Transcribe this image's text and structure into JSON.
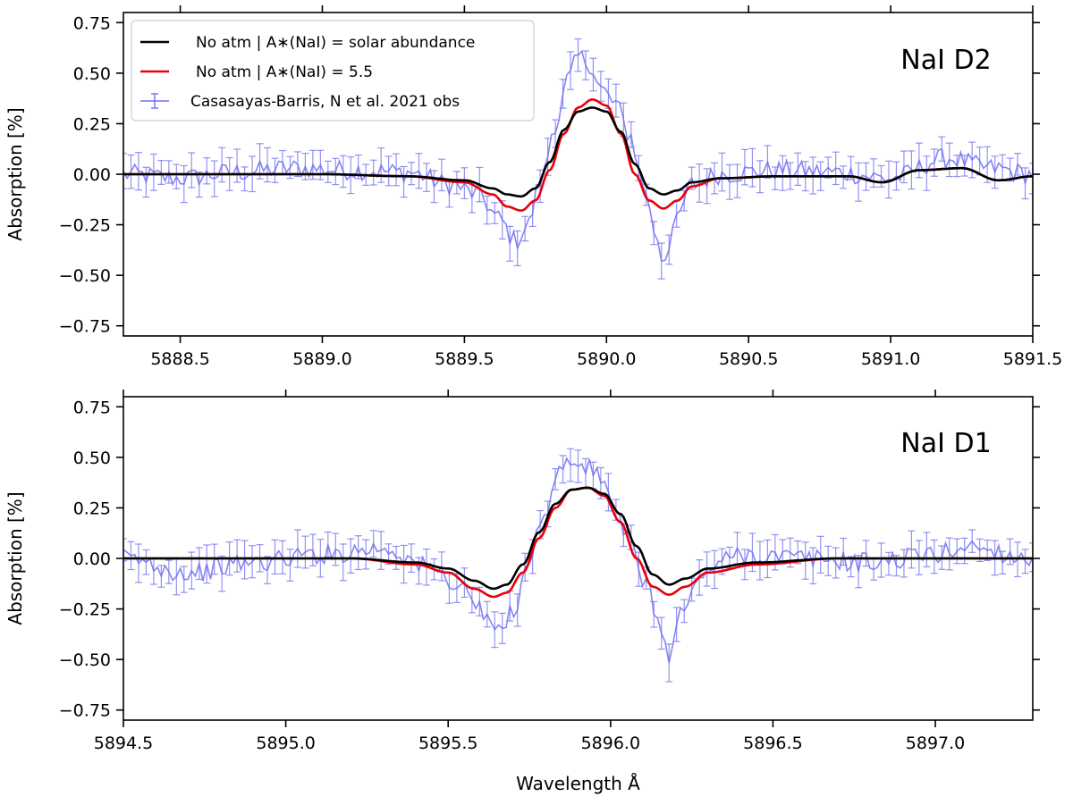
{
  "chart_data": [
    {
      "type": "line",
      "panel_title": "NaI D2",
      "ylabel": "Absorption [%]",
      "xlabel": "",
      "xlim": [
        5888.3,
        5891.5
      ],
      "ylim": [
        -0.8,
        0.8
      ],
      "xticks": [
        "5888.5",
        "5889.0",
        "5889.5",
        "5890.0",
        "5890.5",
        "5891.0",
        "5891.5"
      ],
      "yticks": [
        "0.75",
        "0.50",
        "0.25",
        "0.00",
        "−0.25",
        "−0.50",
        "−0.75"
      ],
      "legend": {
        "position": "top-left",
        "entries": [
          {
            "label": "No atm | A∗(NaI) = solar abundance",
            "color": "#000000"
          },
          {
            "label": "No atm | A∗(NaI) = 5.5",
            "color": "#e8000b"
          },
          {
            "label": "Casasayas-Barris, N et al. 2021 obs",
            "color": "#7070f0"
          }
        ]
      },
      "series": [
        {
          "name": "No atm | A∗(NaI) = solar abundance",
          "color": "#000000",
          "x": [
            5888.3,
            5889.0,
            5889.3,
            5889.5,
            5889.6,
            5889.65,
            5889.7,
            5889.75,
            5889.8,
            5889.85,
            5889.9,
            5889.95,
            5890.0,
            5890.05,
            5890.1,
            5890.15,
            5890.2,
            5890.25,
            5890.3,
            5890.4,
            5890.6,
            5890.85,
            5890.97,
            5891.1,
            5891.25,
            5891.38,
            5891.5
          ],
          "y": [
            0.0,
            0.0,
            -0.01,
            -0.03,
            -0.07,
            -0.1,
            -0.11,
            -0.07,
            0.06,
            0.22,
            0.31,
            0.33,
            0.31,
            0.21,
            0.05,
            -0.07,
            -0.1,
            -0.08,
            -0.04,
            -0.02,
            -0.01,
            -0.01,
            -0.04,
            0.02,
            0.03,
            -0.03,
            -0.01
          ]
        },
        {
          "name": "No atm | A∗(NaI) = 5.5",
          "color": "#e8000b",
          "x": [
            5888.3,
            5889.0,
            5889.3,
            5889.5,
            5889.6,
            5889.65,
            5889.7,
            5889.75,
            5889.8,
            5889.85,
            5889.9,
            5889.95,
            5890.0,
            5890.05,
            5890.1,
            5890.15,
            5890.2,
            5890.25,
            5890.3,
            5890.4,
            5890.6,
            5890.85,
            5890.97,
            5891.1,
            5891.25,
            5891.38,
            5891.5
          ],
          "y": [
            0.0,
            0.0,
            -0.01,
            -0.04,
            -0.1,
            -0.16,
            -0.18,
            -0.13,
            0.02,
            0.2,
            0.33,
            0.37,
            0.34,
            0.2,
            0.0,
            -0.13,
            -0.17,
            -0.13,
            -0.06,
            -0.02,
            -0.01,
            -0.01,
            -0.04,
            0.02,
            0.03,
            -0.03,
            -0.01
          ]
        },
        {
          "name": "Casasayas-Barris, N et al. 2021 obs",
          "color": "#7070f0",
          "x": [
            5888.3,
            5888.5,
            5888.7,
            5888.9,
            5889.1,
            5889.3,
            5889.45,
            5889.55,
            5889.62,
            5889.68,
            5889.72,
            5889.77,
            5889.82,
            5889.87,
            5889.9,
            5889.94,
            5889.98,
            5890.03,
            5890.08,
            5890.13,
            5890.17,
            5890.2,
            5890.24,
            5890.3,
            5890.4,
            5890.6,
            5890.8,
            5891.0,
            5891.2,
            5891.35,
            5891.5
          ],
          "y": [
            0.0,
            -0.02,
            0.01,
            0.03,
            0.02,
            0.01,
            -0.05,
            -0.1,
            -0.22,
            -0.33,
            -0.26,
            -0.03,
            0.25,
            0.48,
            0.58,
            0.55,
            0.42,
            0.35,
            0.2,
            -0.05,
            -0.28,
            -0.42,
            -0.25,
            -0.05,
            0.0,
            0.02,
            0.01,
            -0.02,
            0.08,
            0.03,
            0.0
          ]
        }
      ]
    },
    {
      "type": "line",
      "panel_title": "NaI D1",
      "ylabel": "Absorption [%]",
      "xlabel": "Wavelength Å",
      "xlim": [
        5894.5,
        5897.3
      ],
      "ylim": [
        -0.8,
        0.8
      ],
      "xticks": [
        "5894.5",
        "5895.0",
        "5895.5",
        "5896.0",
        "5896.5",
        "5897.0"
      ],
      "yticks": [
        "0.75",
        "0.50",
        "0.25",
        "0.00",
        "−0.25",
        "−0.50",
        "−0.75"
      ],
      "series": [
        {
          "name": "No atm | A∗(NaI) = solar abundance",
          "color": "#000000",
          "x": [
            5894.5,
            5895.2,
            5895.4,
            5895.5,
            5895.58,
            5895.64,
            5895.68,
            5895.73,
            5895.78,
            5895.83,
            5895.88,
            5895.93,
            5895.98,
            5896.03,
            5896.08,
            5896.13,
            5896.18,
            5896.23,
            5896.3,
            5896.45,
            5896.7,
            5897.3
          ],
          "y": [
            0.0,
            0.0,
            -0.02,
            -0.05,
            -0.11,
            -0.15,
            -0.13,
            -0.03,
            0.13,
            0.27,
            0.34,
            0.35,
            0.32,
            0.22,
            0.06,
            -0.08,
            -0.13,
            -0.1,
            -0.05,
            -0.02,
            0.0,
            0.0
          ]
        },
        {
          "name": "No atm | A∗(NaI) = 5.5",
          "color": "#e8000b",
          "x": [
            5894.5,
            5895.2,
            5895.4,
            5895.5,
            5895.58,
            5895.64,
            5895.68,
            5895.73,
            5895.78,
            5895.83,
            5895.88,
            5895.93,
            5895.98,
            5896.03,
            5896.08,
            5896.13,
            5896.18,
            5896.23,
            5896.3,
            5896.45,
            5896.7,
            5897.3
          ],
          "y": [
            0.0,
            0.0,
            -0.03,
            -0.07,
            -0.15,
            -0.19,
            -0.17,
            -0.07,
            0.1,
            0.25,
            0.34,
            0.35,
            0.31,
            0.18,
            0.0,
            -0.14,
            -0.18,
            -0.14,
            -0.07,
            -0.03,
            0.0,
            0.0
          ]
        },
        {
          "name": "Casasayas-Barris, N et al. 2021 obs",
          "color": "#7070f0",
          "x": [
            5894.5,
            5894.7,
            5894.9,
            5895.1,
            5895.3,
            5895.45,
            5895.55,
            5895.62,
            5895.66,
            5895.7,
            5895.75,
            5895.8,
            5895.85,
            5895.88,
            5895.92,
            5895.96,
            5896.0,
            5896.05,
            5896.1,
            5896.15,
            5896.18,
            5896.22,
            5896.3,
            5896.4,
            5896.6,
            5896.8,
            5897.0,
            5897.1,
            5897.3
          ],
          "y": [
            0.0,
            -0.07,
            -0.02,
            0.02,
            0.05,
            -0.05,
            -0.15,
            -0.3,
            -0.38,
            -0.25,
            0.0,
            0.25,
            0.45,
            0.48,
            0.45,
            0.42,
            0.3,
            0.1,
            -0.1,
            -0.3,
            -0.5,
            -0.25,
            -0.05,
            0.02,
            0.0,
            -0.02,
            0.02,
            0.06,
            0.0
          ]
        }
      ]
    }
  ]
}
